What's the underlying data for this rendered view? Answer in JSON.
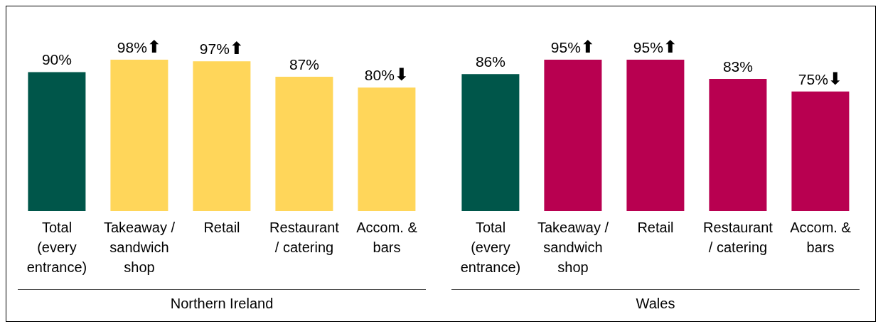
{
  "chart_data": [
    {
      "type": "bar",
      "xlabel": "Northern Ireland",
      "categories": [
        "Total (every entrance)",
        "Takeaway / sandwich shop",
        "Retail",
        "Restaurant / catering",
        "Accom. & bars"
      ],
      "values": [
        90,
        98,
        97,
        87,
        80
      ],
      "colors": [
        "#00564a",
        "#ffd65a",
        "#ffd65a",
        "#ffd65a",
        "#ffd65a"
      ],
      "value_labels": [
        "90%",
        "98%",
        "97%",
        "87%",
        "80%"
      ],
      "annotations": [
        {
          "text": "⬆",
          "x": "Takeaway / sandwich shop",
          "y": 98
        },
        {
          "text": "⬆",
          "x": "Retail",
          "y": 97
        },
        {
          "text": "⬇",
          "x": "Accom. & bars",
          "y": 80
        }
      ]
    },
    {
      "type": "bar",
      "xlabel": "Wales",
      "categories": [
        "Total (every entrance)",
        "Takeaway / sandwich shop",
        "Retail",
        "Restaurant / catering",
        "Accom. & bars"
      ],
      "values": [
        86,
        95,
        95,
        83,
        75
      ],
      "colors": [
        "#00564a",
        "#b80050",
        "#b80050",
        "#b80050",
        "#b80050"
      ],
      "value_labels": [
        "86%",
        "95%",
        "95%",
        "83%",
        "75%"
      ],
      "annotations": [
        {
          "text": "⬆",
          "x": "Takeaway / sandwich shop",
          "y": 95
        },
        {
          "text": "⬆",
          "x": "Retail",
          "y": 95
        },
        {
          "text": "⬇",
          "x": "Accom. & bars",
          "y": 75
        }
      ]
    }
  ]
}
